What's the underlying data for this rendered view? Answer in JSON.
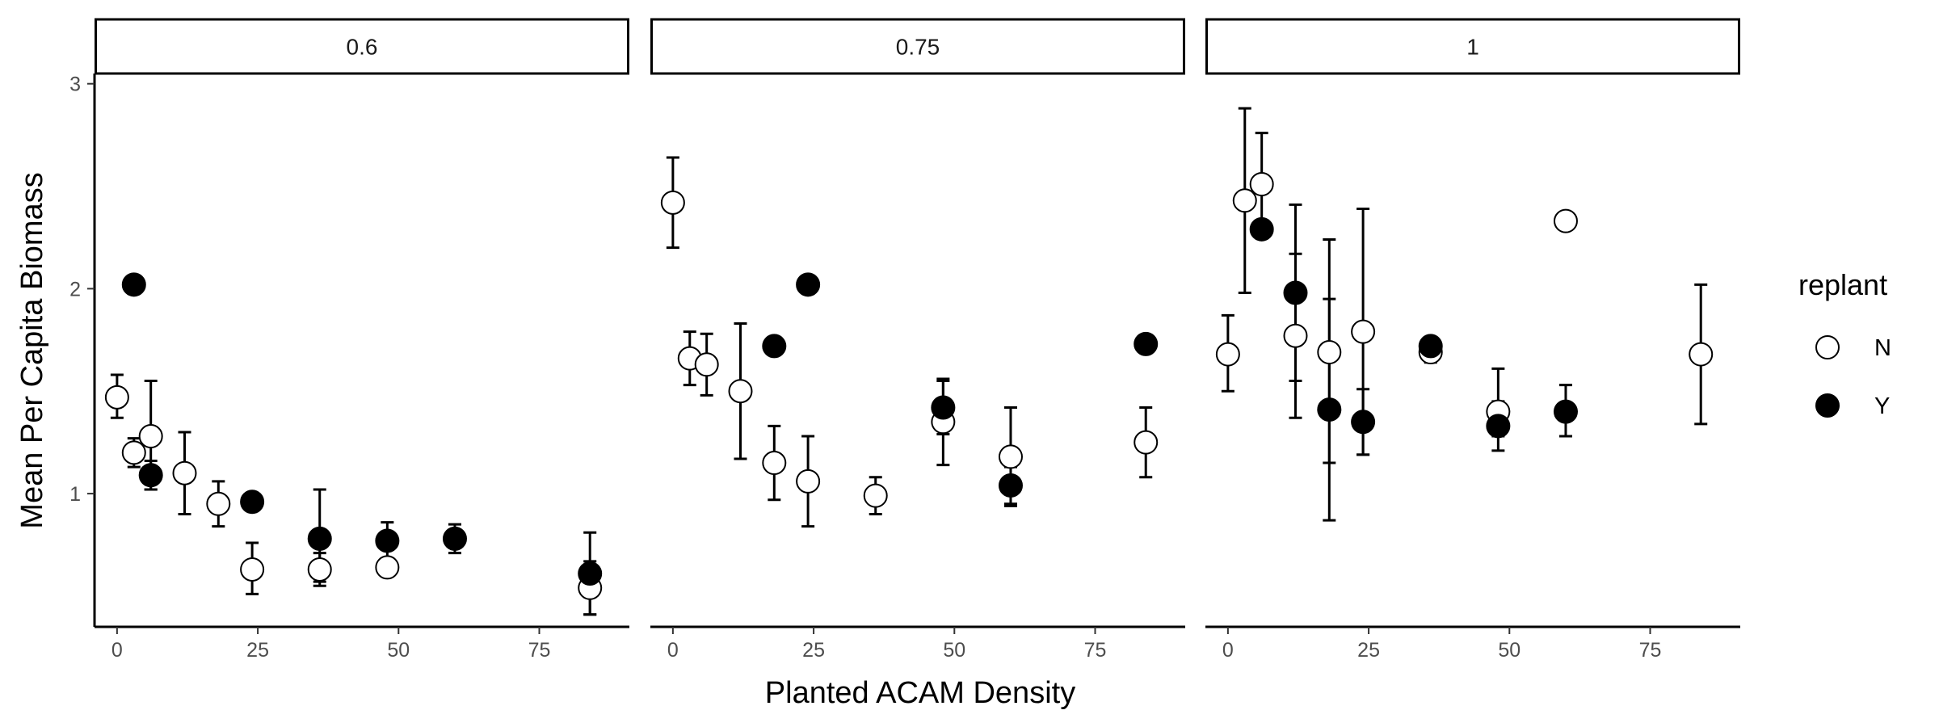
{
  "chart_data": {
    "type": "scatter",
    "xlabel": "Planted ACAM Density",
    "ylabel": "Mean Per Capita Biomass",
    "xlim": [
      -4,
      91
    ],
    "ylim": [
      0.35,
      3.05
    ],
    "x_ticks": [
      0,
      25,
      50,
      75
    ],
    "y_ticks": [
      1,
      2,
      3
    ],
    "grid": false,
    "legend": {
      "title": "replant",
      "position": "right",
      "entries": [
        {
          "key": "N",
          "label": "N",
          "fill": "#ffffff"
        },
        {
          "key": "Y",
          "label": "Y",
          "fill": "#000000"
        }
      ]
    },
    "facets": [
      {
        "label": "0.6",
        "points": [
          {
            "x": 0,
            "y": 1.47,
            "ymin": 1.37,
            "ymax": 1.58,
            "replant": "N"
          },
          {
            "x": 3,
            "y": 1.2,
            "ymin": 1.13,
            "ymax": 1.27,
            "replant": "N"
          },
          {
            "x": 3,
            "y": 2.02,
            "replant": "Y"
          },
          {
            "x": 6,
            "y": 1.28,
            "ymin": 1.02,
            "ymax": 1.55,
            "replant": "N"
          },
          {
            "x": 6,
            "y": 1.09,
            "ymin": 1.02,
            "ymax": 1.16,
            "replant": "Y"
          },
          {
            "x": 12,
            "y": 1.1,
            "ymin": 0.9,
            "ymax": 1.3,
            "replant": "N"
          },
          {
            "x": 18,
            "y": 0.95,
            "ymin": 0.84,
            "ymax": 1.06,
            "replant": "N"
          },
          {
            "x": 24,
            "y": 0.63,
            "ymin": 0.51,
            "ymax": 0.76,
            "replant": "N"
          },
          {
            "x": 24,
            "y": 0.96,
            "replant": "Y"
          },
          {
            "x": 36,
            "y": 0.63,
            "ymin": 0.55,
            "ymax": 0.71,
            "replant": "N"
          },
          {
            "x": 36,
            "y": 0.78,
            "ymin": 0.57,
            "ymax": 1.02,
            "replant": "Y"
          },
          {
            "x": 48,
            "y": 0.64,
            "replant": "N"
          },
          {
            "x": 48,
            "y": 0.77,
            "ymin": 0.68,
            "ymax": 0.86,
            "replant": "Y"
          },
          {
            "x": 60,
            "y": 0.78,
            "ymin": 0.71,
            "ymax": 0.85,
            "replant": "Y"
          },
          {
            "x": 84,
            "y": 0.54,
            "ymin": 0.41,
            "ymax": 0.67,
            "replant": "N"
          },
          {
            "x": 84,
            "y": 0.61,
            "ymin": 0.41,
            "ymax": 0.81,
            "replant": "Y"
          }
        ]
      },
      {
        "label": "0.75",
        "points": [
          {
            "x": 0,
            "y": 2.42,
            "ymin": 2.2,
            "ymax": 2.64,
            "replant": "N"
          },
          {
            "x": 3,
            "y": 1.66,
            "ymin": 1.53,
            "ymax": 1.79,
            "replant": "N"
          },
          {
            "x": 6,
            "y": 1.63,
            "ymin": 1.48,
            "ymax": 1.78,
            "replant": "N"
          },
          {
            "x": 12,
            "y": 1.5,
            "ymin": 1.17,
            "ymax": 1.83,
            "replant": "N"
          },
          {
            "x": 18,
            "y": 1.15,
            "ymin": 0.97,
            "ymax": 1.33,
            "replant": "N"
          },
          {
            "x": 18,
            "y": 1.72,
            "replant": "Y"
          },
          {
            "x": 24,
            "y": 1.06,
            "ymin": 0.84,
            "ymax": 1.28,
            "replant": "N"
          },
          {
            "x": 24,
            "y": 2.02,
            "replant": "Y"
          },
          {
            "x": 36,
            "y": 0.99,
            "ymin": 0.9,
            "ymax": 1.08,
            "replant": "N"
          },
          {
            "x": 48,
            "y": 1.35,
            "ymin": 1.14,
            "ymax": 1.56,
            "replant": "N"
          },
          {
            "x": 48,
            "y": 1.42,
            "ymin": 1.29,
            "ymax": 1.55,
            "replant": "Y"
          },
          {
            "x": 60,
            "y": 1.18,
            "ymin": 0.94,
            "ymax": 1.42,
            "replant": "N"
          },
          {
            "x": 60,
            "y": 1.04,
            "ymin": 0.95,
            "ymax": 1.13,
            "replant": "Y"
          },
          {
            "x": 84,
            "y": 1.25,
            "ymin": 1.08,
            "ymax": 1.42,
            "replant": "N"
          },
          {
            "x": 84,
            "y": 1.73,
            "replant": "Y"
          }
        ]
      },
      {
        "label": "1",
        "points": [
          {
            "x": 0,
            "y": 1.68,
            "ymin": 1.5,
            "ymax": 1.87,
            "replant": "N"
          },
          {
            "x": 3,
            "y": 2.43,
            "ymin": 1.98,
            "ymax": 2.88,
            "replant": "N"
          },
          {
            "x": 6,
            "y": 2.51,
            "ymin": 2.26,
            "ymax": 2.76,
            "replant": "N"
          },
          {
            "x": 6,
            "y": 2.29,
            "replant": "Y"
          },
          {
            "x": 12,
            "y": 1.77,
            "ymin": 1.37,
            "ymax": 2.17,
            "replant": "N"
          },
          {
            "x": 12,
            "y": 1.98,
            "ymin": 1.55,
            "ymax": 2.41,
            "replant": "Y"
          },
          {
            "x": 18,
            "y": 1.69,
            "ymin": 1.15,
            "ymax": 2.24,
            "replant": "N"
          },
          {
            "x": 18,
            "y": 1.41,
            "ymin": 0.87,
            "ymax": 1.95,
            "replant": "Y"
          },
          {
            "x": 24,
            "y": 1.79,
            "ymin": 1.19,
            "ymax": 2.39,
            "replant": "N"
          },
          {
            "x": 24,
            "y": 1.35,
            "ymin": 1.19,
            "ymax": 1.51,
            "replant": "Y"
          },
          {
            "x": 36,
            "y": 1.69,
            "ymin": 1.64,
            "ymax": 1.74,
            "replant": "N"
          },
          {
            "x": 36,
            "y": 1.72,
            "replant": "Y"
          },
          {
            "x": 48,
            "y": 1.4,
            "ymin": 1.28,
            "ymax": 1.61,
            "replant": "N"
          },
          {
            "x": 48,
            "y": 1.33,
            "ymin": 1.21,
            "ymax": 1.45,
            "replant": "Y"
          },
          {
            "x": 60,
            "y": 2.33,
            "replant": "N"
          },
          {
            "x": 60,
            "y": 1.4,
            "ymin": 1.28,
            "ymax": 1.53,
            "replant": "Y"
          },
          {
            "x": 84,
            "y": 1.68,
            "ymin": 1.34,
            "ymax": 2.02,
            "replant": "N"
          }
        ]
      }
    ]
  }
}
